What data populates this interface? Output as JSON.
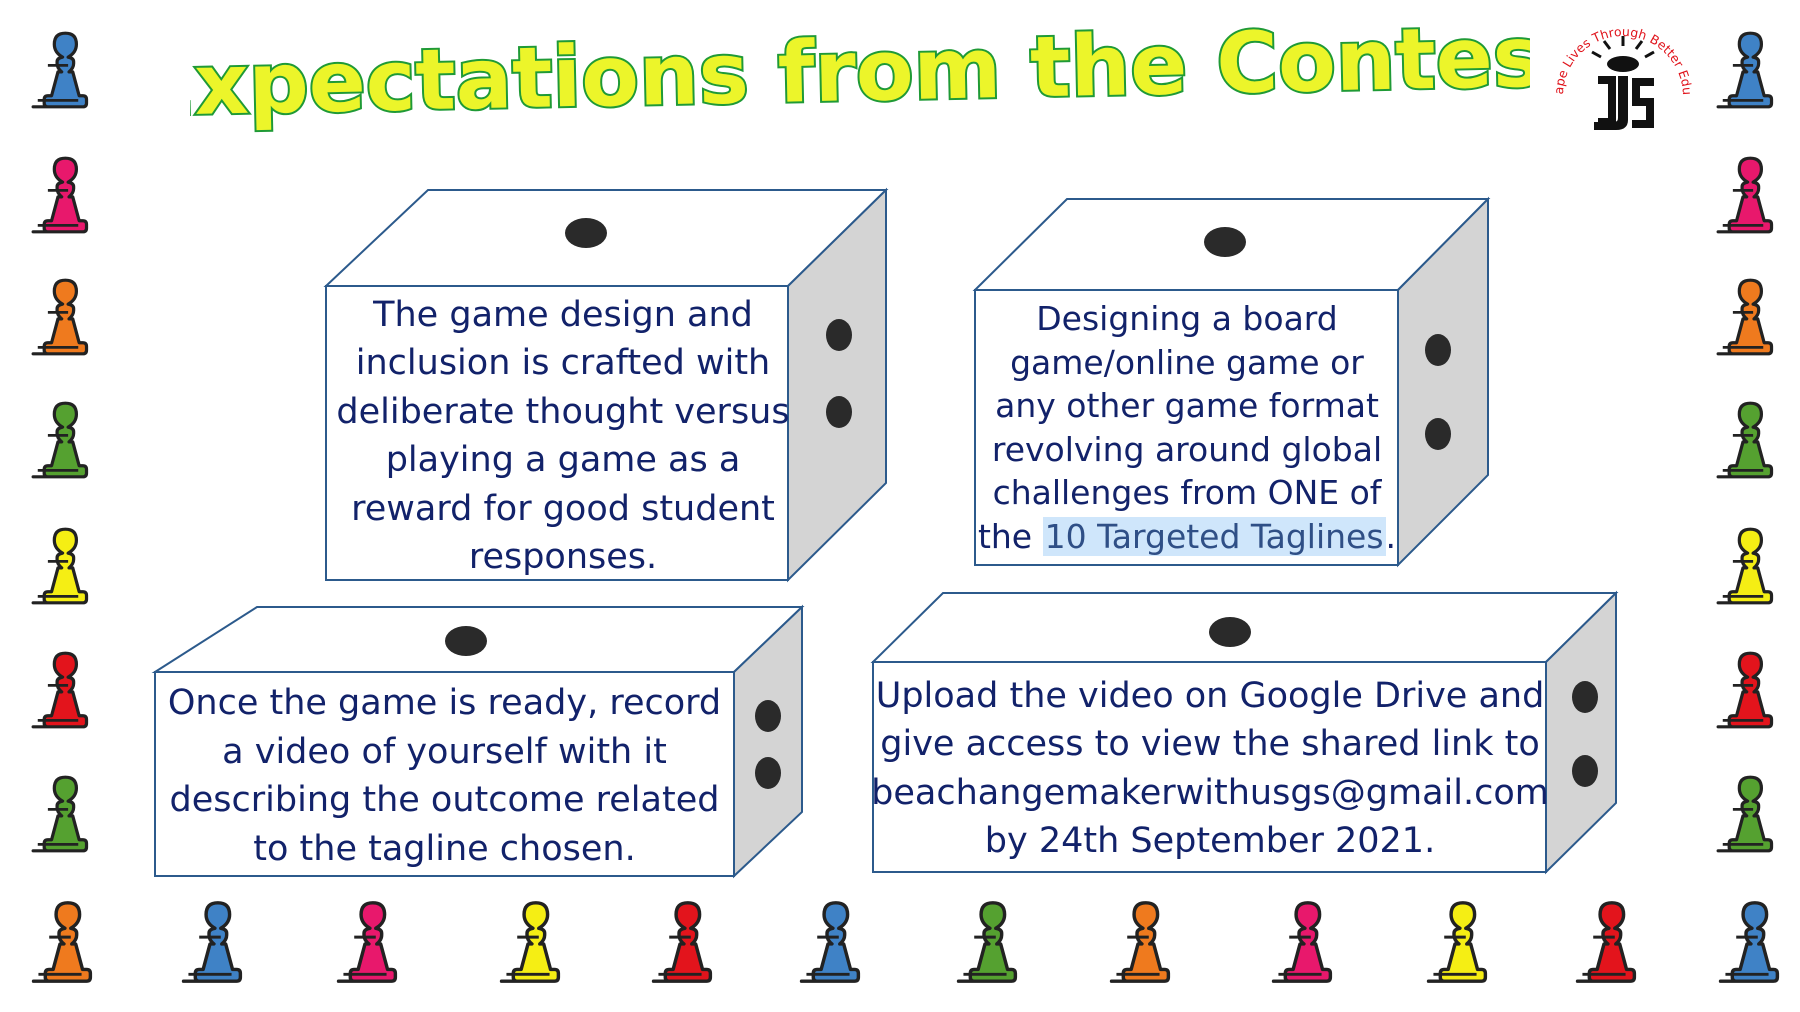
{
  "title": "Expectations from the Contest",
  "logo": {
    "tagline": "We Shape Lives Through Better Education",
    "initials": "DJS"
  },
  "cards": [
    {
      "text": "The game design and inclusion is crafted with deliberate thought versus playing a game as a reward for good student responses."
    },
    {
      "text_before": "Designing a board game/online game or any other game format revolving around global challenges from ONE of the ",
      "highlight": "10 Targeted Taglines",
      "text_after": "."
    },
    {
      "text": "Once the game is ready, record a video of yourself with it describing the outcome related to the tagline chosen."
    },
    {
      "text": "Upload the video on Google Drive and give access to view the shared link to beachangemakerwithusgs@gmail.com by 24th September 2021."
    }
  ],
  "colors": {
    "title_fill": "#ecf52a",
    "title_outline": "#1f9a36",
    "text": "#12226a",
    "die_outline": "#2c5a8c",
    "die_side": "#d4d4d4",
    "highlight": "#cfe6fb",
    "pawn_blue": "#3f82c6",
    "pawn_pink": "#e8186c",
    "pawn_orange": "#ef7a1e",
    "pawn_green": "#55a130",
    "pawn_yellow": "#f5ee14",
    "pawn_red": "#e3141c"
  },
  "pawns": {
    "left_column": [
      "blue",
      "pink",
      "orange",
      "green",
      "yellow",
      "red",
      "green"
    ],
    "right_column": [
      "blue",
      "pink",
      "orange",
      "green",
      "yellow",
      "red",
      "green"
    ],
    "bottom_row": [
      "orange",
      "blue",
      "pink",
      "yellow",
      "red",
      "blue",
      "green",
      "orange",
      "pink",
      "yellow",
      "red",
      "blue"
    ]
  }
}
